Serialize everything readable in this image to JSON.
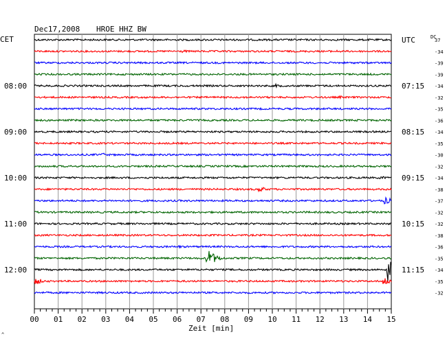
{
  "header": {
    "date": "Dec17,2008",
    "station": "HROE HHZ BW"
  },
  "left_axis_label": "CET",
  "right_axis_label": "UTC",
  "dc_label": "DC",
  "footer_mark": "^",
  "chart_data": {
    "type": "line",
    "title": "Dec17,2008   HROE HHZ BW",
    "xlabel": "Zeit [min]",
    "x_ticks": [
      "00",
      "01",
      "02",
      "03",
      "04",
      "05",
      "06",
      "07",
      "08",
      "09",
      "10",
      "11",
      "12",
      "13",
      "14",
      "15"
    ],
    "xlim": [
      0,
      15
    ],
    "trace_colors": [
      "#000000",
      "#ff0000",
      "#0000ff",
      "#006400"
    ],
    "left_time_labels": [
      {
        "row": 4,
        "label": "08:00"
      },
      {
        "row": 8,
        "label": "09:00"
      },
      {
        "row": 12,
        "label": "10:00"
      },
      {
        "row": 16,
        "label": "11:00"
      },
      {
        "row": 20,
        "label": "12:00"
      }
    ],
    "right_time_labels": [
      {
        "row": 0,
        "label": "UTC"
      },
      {
        "row": 4,
        "label": "07:15"
      },
      {
        "row": 8,
        "label": "08:15"
      },
      {
        "row": 12,
        "label": "09:15"
      },
      {
        "row": 16,
        "label": "10:15"
      },
      {
        "row": 20,
        "label": "11:15"
      }
    ],
    "dc_offsets": [
      "37",
      "-34",
      "-39",
      "-39",
      "-34",
      "-32",
      "-35",
      "-36",
      "-34",
      "-35",
      "-30",
      "-32",
      "-34",
      "-38",
      "-37",
      "-32",
      "-32",
      "-38",
      "-36",
      "-35",
      "-34",
      "-35",
      "-32"
    ],
    "events": [
      {
        "row": 1,
        "minute": 6.3,
        "amplitude": 2.0
      },
      {
        "row": 1,
        "minute": 12.8,
        "amplitude": 1.8
      },
      {
        "row": 4,
        "minute": 10.2,
        "amplitude": 2.5
      },
      {
        "row": 5,
        "minute": 8.8,
        "amplitude": 1.8
      },
      {
        "row": 5,
        "minute": 12.9,
        "amplitude": 2.0
      },
      {
        "row": 7,
        "minute": 13.6,
        "amplitude": 1.5
      },
      {
        "row": 10,
        "minute": 2.9,
        "amplitude": 2.5
      },
      {
        "row": 12,
        "minute": 14.6,
        "amplitude": 2.5
      },
      {
        "row": 13,
        "minute": 9.5,
        "amplitude": 4.0
      },
      {
        "row": 14,
        "minute": 14.8,
        "amplitude": 5.0
      },
      {
        "row": 18,
        "minute": 6.1,
        "amplitude": 2.0
      },
      {
        "row": 19,
        "minute": 7.3,
        "amplitude": 14.0
      },
      {
        "row": 20,
        "minute": 14.9,
        "amplitude": 18.0
      },
      {
        "row": 21,
        "minute": 0.1,
        "amplitude": 5.0
      },
      {
        "row": 21,
        "minute": 14.75,
        "amplitude": 6.0
      }
    ]
  }
}
